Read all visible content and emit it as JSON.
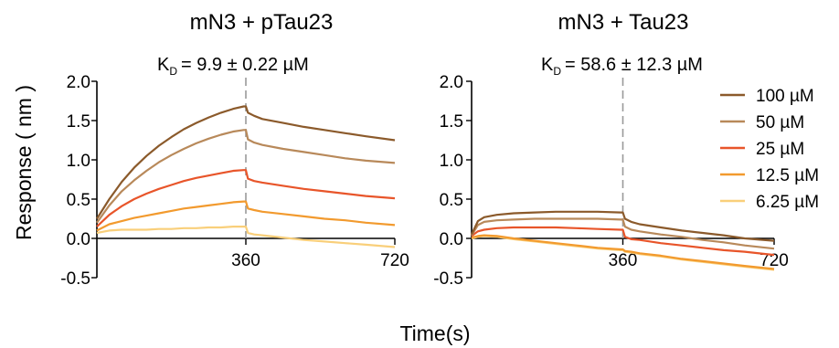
{
  "figure": {
    "ylabel": "Response ( nm )",
    "xlabel": "Time(s)"
  },
  "chart_data": [
    {
      "type": "line",
      "title": "mN3 + pTau23",
      "kd_prefix": "K",
      "kd_sub": "D",
      "kd_text": "= 9.9 ± 0.22 µM",
      "xlim": [
        0,
        720
      ],
      "ylim": [
        -0.5,
        2.0
      ],
      "xticks": [
        360,
        720
      ],
      "yticks": [
        -0.5,
        0.0,
        0.5,
        1.0,
        1.5,
        2.0
      ],
      "ytick_labels": [
        "-0.5",
        "0.0",
        "0.5",
        "1.0",
        "1.5",
        "2.0"
      ],
      "divider_x": 360,
      "series": [
        {
          "name": "100 µM",
          "color": "#8B5A2B",
          "x": [
            0,
            30,
            60,
            90,
            120,
            150,
            180,
            210,
            240,
            270,
            300,
            330,
            355,
            360,
            365,
            380,
            400,
            450,
            500,
            550,
            600,
            650,
            720
          ],
          "values": [
            0.25,
            0.5,
            0.72,
            0.9,
            1.05,
            1.18,
            1.29,
            1.39,
            1.47,
            1.54,
            1.6,
            1.65,
            1.68,
            1.68,
            1.6,
            1.56,
            1.52,
            1.47,
            1.42,
            1.38,
            1.34,
            1.3,
            1.25
          ]
        },
        {
          "name": "50 µM",
          "color": "#B8895A",
          "x": [
            0,
            30,
            60,
            90,
            120,
            150,
            180,
            210,
            240,
            270,
            300,
            330,
            355,
            360,
            365,
            380,
            400,
            450,
            500,
            550,
            600,
            650,
            720
          ],
          "values": [
            0.2,
            0.42,
            0.6,
            0.74,
            0.86,
            0.97,
            1.06,
            1.14,
            1.21,
            1.27,
            1.32,
            1.36,
            1.38,
            1.38,
            1.26,
            1.22,
            1.19,
            1.14,
            1.1,
            1.06,
            1.02,
            0.99,
            0.96
          ]
        },
        {
          "name": "25 µM",
          "color": "#E8552A",
          "x": [
            0,
            30,
            60,
            90,
            120,
            150,
            180,
            210,
            240,
            270,
            300,
            330,
            355,
            360,
            365,
            380,
            400,
            450,
            500,
            550,
            600,
            650,
            720
          ],
          "values": [
            0.15,
            0.3,
            0.41,
            0.5,
            0.57,
            0.63,
            0.68,
            0.73,
            0.77,
            0.8,
            0.83,
            0.86,
            0.87,
            0.87,
            0.76,
            0.73,
            0.71,
            0.67,
            0.63,
            0.6,
            0.57,
            0.54,
            0.51
          ]
        },
        {
          "name": "12.5 µM",
          "color": "#F29A2E",
          "x": [
            0,
            30,
            60,
            90,
            120,
            150,
            180,
            210,
            240,
            270,
            300,
            330,
            355,
            360,
            365,
            380,
            400,
            450,
            500,
            550,
            600,
            650,
            720
          ],
          "values": [
            0.1,
            0.18,
            0.22,
            0.26,
            0.29,
            0.32,
            0.35,
            0.38,
            0.4,
            0.42,
            0.44,
            0.46,
            0.47,
            0.47,
            0.38,
            0.36,
            0.34,
            0.31,
            0.28,
            0.25,
            0.23,
            0.2,
            0.17
          ]
        },
        {
          "name": "6.25 µM",
          "color": "#F9CF7A",
          "x": [
            0,
            30,
            60,
            90,
            120,
            150,
            180,
            210,
            240,
            270,
            300,
            330,
            355,
            360,
            365,
            380,
            400,
            450,
            500,
            550,
            600,
            650,
            720
          ],
          "values": [
            0.07,
            0.1,
            0.11,
            0.11,
            0.11,
            0.12,
            0.12,
            0.13,
            0.13,
            0.14,
            0.14,
            0.15,
            0.15,
            0.15,
            0.07,
            0.05,
            0.04,
            0.01,
            -0.02,
            -0.04,
            -0.06,
            -0.08,
            -0.11
          ]
        }
      ]
    },
    {
      "type": "line",
      "title": "mN3 + Tau23",
      "kd_prefix": "K",
      "kd_sub": "D",
      "kd_text": "= 58.6 ± 12.3 µM",
      "xlim": [
        0,
        720
      ],
      "ylim": [
        -0.5,
        2.0
      ],
      "xticks": [
        360,
        720
      ],
      "yticks": [
        -0.5,
        0.0,
        0.5,
        1.0,
        1.5,
        2.0
      ],
      "ytick_labels": [
        "-0.5",
        "0.0",
        "0.5",
        "1.0",
        "1.5",
        "2.0"
      ],
      "divider_x": 360,
      "legend_position": "top-right",
      "series": [
        {
          "name": "100 µM",
          "color": "#8B5A2B",
          "x": [
            0,
            15,
            30,
            60,
            100,
            150,
            200,
            250,
            300,
            355,
            360,
            365,
            380,
            400,
            450,
            500,
            550,
            600,
            650,
            720
          ],
          "values": [
            0.05,
            0.22,
            0.27,
            0.3,
            0.32,
            0.33,
            0.34,
            0.34,
            0.34,
            0.33,
            0.33,
            0.25,
            0.21,
            0.18,
            0.14,
            0.1,
            0.07,
            0.04,
            0.0,
            -0.03
          ]
        },
        {
          "name": "50 µM",
          "color": "#B8895A",
          "x": [
            0,
            15,
            30,
            60,
            100,
            150,
            200,
            250,
            300,
            355,
            360,
            365,
            380,
            400,
            450,
            500,
            550,
            600,
            650,
            720
          ],
          "values": [
            0.04,
            0.17,
            0.21,
            0.23,
            0.24,
            0.25,
            0.25,
            0.25,
            0.25,
            0.24,
            0.24,
            0.15,
            0.11,
            0.09,
            0.05,
            0.02,
            -0.02,
            -0.05,
            -0.09,
            -0.13
          ]
        },
        {
          "name": "25 µM",
          "color": "#E8552A",
          "x": [
            0,
            15,
            30,
            60,
            100,
            150,
            200,
            250,
            300,
            355,
            360,
            365,
            380,
            400,
            450,
            500,
            550,
            600,
            650,
            720
          ],
          "values": [
            0.03,
            0.09,
            0.11,
            0.13,
            0.14,
            0.14,
            0.14,
            0.13,
            0.12,
            0.11,
            0.11,
            0.02,
            -0.01,
            -0.02,
            -0.06,
            -0.09,
            -0.12,
            -0.15,
            -0.17,
            -0.21
          ]
        },
        {
          "name": "12.5 µM",
          "color": "#F29A2E",
          "x": [
            0,
            15,
            30,
            60,
            100,
            150,
            200,
            250,
            300,
            355,
            360,
            365,
            380,
            400,
            450,
            500,
            550,
            600,
            650,
            720
          ],
          "values": [
            0.01,
            0.03,
            0.04,
            0.03,
            0.0,
            -0.03,
            -0.06,
            -0.09,
            -0.12,
            -0.14,
            -0.14,
            -0.16,
            -0.17,
            -0.19,
            -0.22,
            -0.26,
            -0.29,
            -0.32,
            -0.35,
            -0.39
          ]
        },
        {
          "name": "6.25 µM",
          "color": "#F9CF7A",
          "x": [
            0,
            15,
            30,
            60,
            100,
            150,
            200,
            250,
            300,
            355,
            360,
            365,
            380,
            400,
            450,
            500,
            550,
            600,
            650,
            720
          ],
          "values": [
            0.0,
            0.02,
            0.03,
            0.02,
            -0.01,
            -0.04,
            -0.07,
            -0.1,
            -0.13,
            -0.15,
            -0.15,
            -0.17,
            -0.18,
            -0.2,
            -0.23,
            -0.27,
            -0.3,
            -0.33,
            -0.36,
            -0.4
          ]
        }
      ]
    }
  ]
}
